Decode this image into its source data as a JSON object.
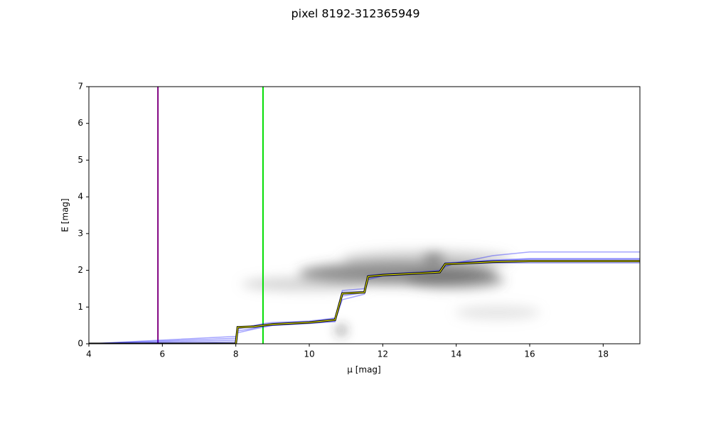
{
  "chart_data": {
    "type": "line",
    "title": "pixel 8192-312365949",
    "xlabel": "μ [mag]",
    "ylabel": "E [mag]",
    "xlim": [
      4,
      19
    ],
    "ylim": [
      0,
      7
    ],
    "xticks": [
      4,
      6,
      8,
      10,
      12,
      14,
      16,
      18
    ],
    "yticks": [
      0,
      1,
      2,
      3,
      4,
      5,
      6,
      7
    ],
    "x": [
      4,
      8,
      8.05,
      8.5,
      8.75,
      9,
      10,
      10.7,
      10.9,
      11.5,
      11.6,
      12,
      13,
      13.55,
      13.7,
      14,
      15,
      16,
      19
    ],
    "series": [
      {
        "color": "#0000ff",
        "values": [
          0,
          0.1,
          0.3,
          0.4,
          0.45,
          0.5,
          0.56,
          0.62,
          1.2,
          1.35,
          1.75,
          1.85,
          1.9,
          1.97,
          2.1,
          2.2,
          2.28,
          2.32,
          2.32
        ]
      },
      {
        "color": "#0000ff",
        "values": [
          0,
          0.05,
          0.4,
          0.5,
          0.55,
          0.58,
          0.62,
          0.7,
          1.45,
          1.5,
          1.86,
          1.9,
          1.95,
          2.0,
          2.2,
          2.22,
          2.26,
          2.3,
          2.3
        ]
      },
      {
        "color": "#0000ff",
        "values": [
          0,
          0.2,
          0.35,
          0.42,
          0.48,
          0.5,
          0.55,
          0.6,
          1.3,
          1.4,
          1.8,
          1.85,
          1.9,
          1.93,
          2.15,
          2.17,
          2.2,
          2.2,
          2.2
        ]
      },
      {
        "color": "#0000ff",
        "values": [
          0,
          0.15,
          0.45,
          0.48,
          0.52,
          0.55,
          0.6,
          0.68,
          1.4,
          1.42,
          1.82,
          1.88,
          1.92,
          1.95,
          2.18,
          2.2,
          2.4,
          2.5,
          2.5
        ]
      },
      {
        "color": "#000000",
        "inner_color": "#ffff00",
        "values": [
          0,
          0,
          0.45,
          0.47,
          0.5,
          0.53,
          0.58,
          0.65,
          1.37,
          1.4,
          1.83,
          1.87,
          1.92,
          1.95,
          2.17,
          2.18,
          2.23,
          2.25,
          2.25
        ]
      }
    ],
    "vlines": [
      {
        "x": 5.88,
        "color": "#800080"
      },
      {
        "x": 8.74,
        "color": "#00dd00"
      }
    ]
  }
}
